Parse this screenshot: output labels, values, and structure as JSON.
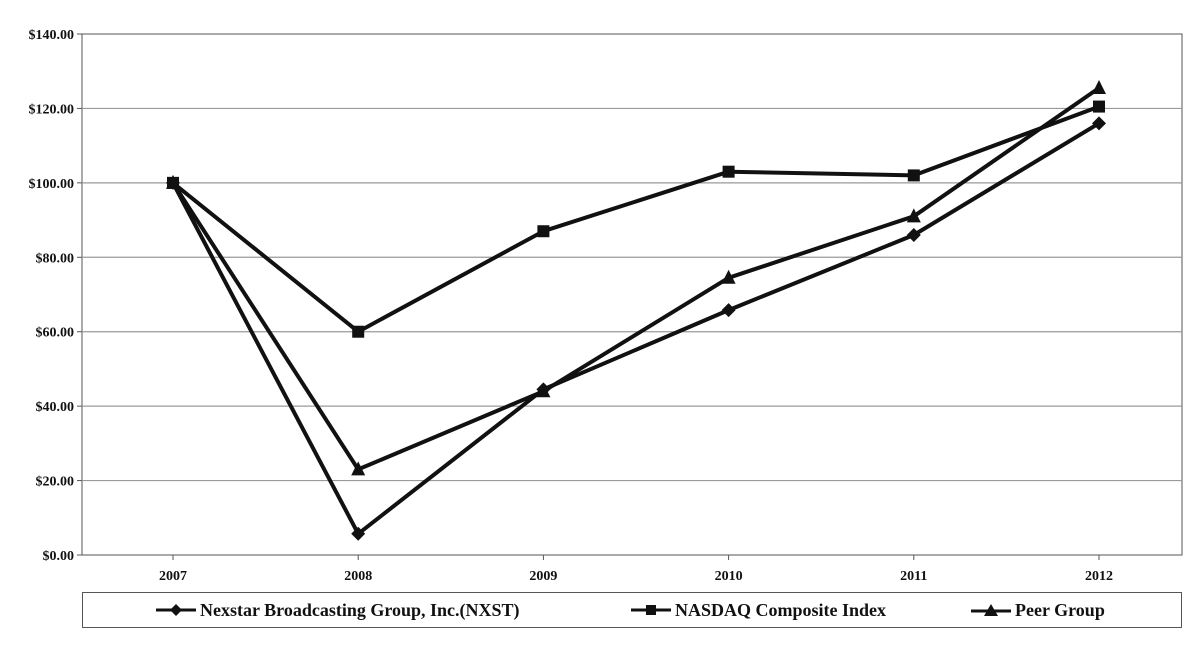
{
  "chart_data": {
    "type": "line",
    "title": "",
    "xlabel": "",
    "ylabel": "",
    "categories": [
      "2007",
      "2008",
      "2009",
      "2010",
      "2011",
      "2012"
    ],
    "ylim": [
      0,
      140
    ],
    "y_ticks": [
      "$0.00",
      "$20.00",
      "$40.00",
      "$60.00",
      "$80.00",
      "$100.00",
      "$120.00",
      "$140.00"
    ],
    "grid": "horizontal",
    "legend_position": "bottom",
    "series": [
      {
        "name": "Nexstar Broadcasting Group, Inc.(NXST)",
        "marker": "diamond",
        "values": [
          100,
          5.7,
          44.5,
          65.8,
          86,
          116
        ]
      },
      {
        "name": "NASDAQ Composite Index",
        "marker": "square",
        "values": [
          100,
          60,
          87,
          103,
          102,
          120.5
        ]
      },
      {
        "name": "Peer Group",
        "marker": "triangle",
        "values": [
          100,
          23,
          44,
          74.5,
          91,
          125.5
        ]
      }
    ]
  }
}
